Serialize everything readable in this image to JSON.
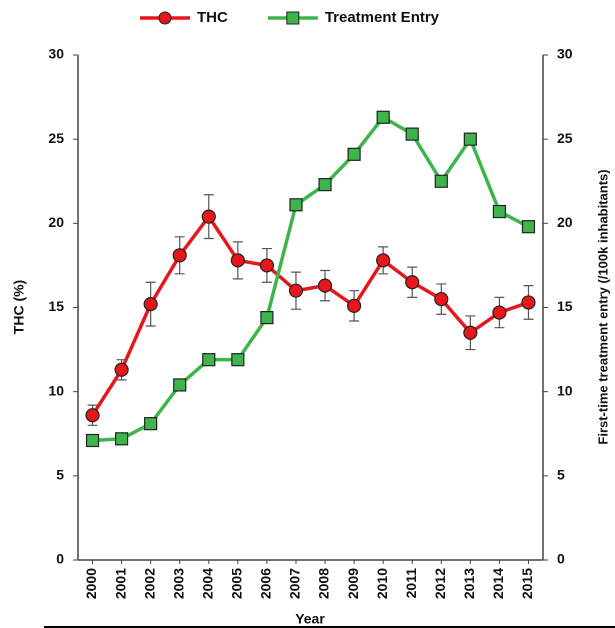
{
  "chart_data": {
    "type": "line",
    "categories": [
      "2000",
      "2001",
      "2002",
      "2003",
      "2004",
      "2005",
      "2006",
      "2007",
      "2008",
      "2009",
      "2010",
      "2011",
      "2012",
      "2013",
      "2014",
      "2015"
    ],
    "series": [
      {
        "name": "THC",
        "color": "#e8161b",
        "marker": "circle",
        "axis": "y",
        "values": [
          8.6,
          11.3,
          15.2,
          18.1,
          20.4,
          17.8,
          17.5,
          16.0,
          16.3,
          15.1,
          17.8,
          16.5,
          15.5,
          13.5,
          14.7,
          15.3
        ],
        "errors": [
          0.6,
          0.6,
          1.3,
          1.1,
          1.3,
          1.1,
          1.0,
          1.1,
          0.9,
          0.9,
          0.8,
          0.9,
          0.9,
          1.0,
          0.9,
          1.0
        ]
      },
      {
        "name": "Treatment Entry",
        "color": "#3db54a",
        "marker": "square",
        "axis": "y2",
        "values": [
          7.1,
          7.2,
          8.1,
          10.4,
          11.9,
          11.9,
          14.4,
          21.1,
          22.3,
          24.1,
          26.3,
          25.3,
          22.5,
          25.0,
          20.7,
          19.8
        ]
      }
    ],
    "x_label": "Year",
    "y_label": "THC (%)",
    "y2_label": "First-time treatment entry (/100k inhabitants)",
    "ylim": [
      0,
      30
    ],
    "yticks": [
      0,
      5,
      10,
      15,
      20,
      25,
      30
    ],
    "y2lim": [
      0,
      30
    ],
    "y2ticks": [
      0,
      5,
      10,
      15,
      20,
      25,
      30
    ],
    "legend": "top"
  }
}
